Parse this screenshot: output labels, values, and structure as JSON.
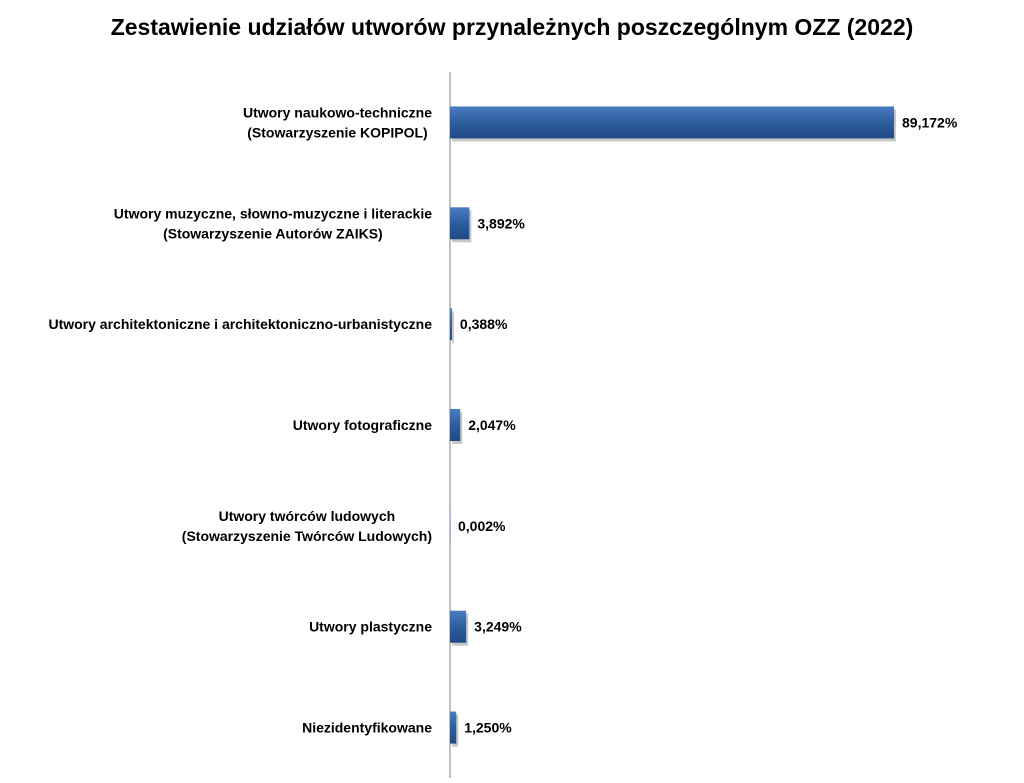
{
  "chart_data": {
    "type": "bar",
    "orientation": "horizontal",
    "title": "Zestawienie udziałów utworów przynależnych poszczególnym OZZ (2022)",
    "xlabel": "",
    "ylabel": "",
    "xlim": [
      0,
      100
    ],
    "grid": false,
    "legend": "none",
    "bar_color": "#2e5e9f",
    "categories": [
      [
        "Utwory naukowo-techniczne",
        "(Stowarzyszenie KOPIPOL)"
      ],
      [
        "Utwory muzyczne, słowno-muzyczne i literackie",
        "(Stowarzyszenie Autorów ZAIKS)"
      ],
      [
        "Utwory architektoniczne i architektoniczno-urbanistyczne"
      ],
      [
        "Utwory fotograficzne"
      ],
      [
        "Utwory twórców ludowych",
        "(Stowarzyszenie Twórców Ludowych)"
      ],
      [
        "Utwory plastyczne"
      ],
      [
        "Niezidentyfikowane"
      ]
    ],
    "values": [
      89.172,
      3.892,
      0.388,
      2.047,
      0.002,
      3.249,
      1.25
    ],
    "value_labels": [
      "89,172%",
      "3,892%",
      "0,388%",
      "2,047%",
      "0,002%",
      "3,249%",
      "1,250%"
    ]
  }
}
